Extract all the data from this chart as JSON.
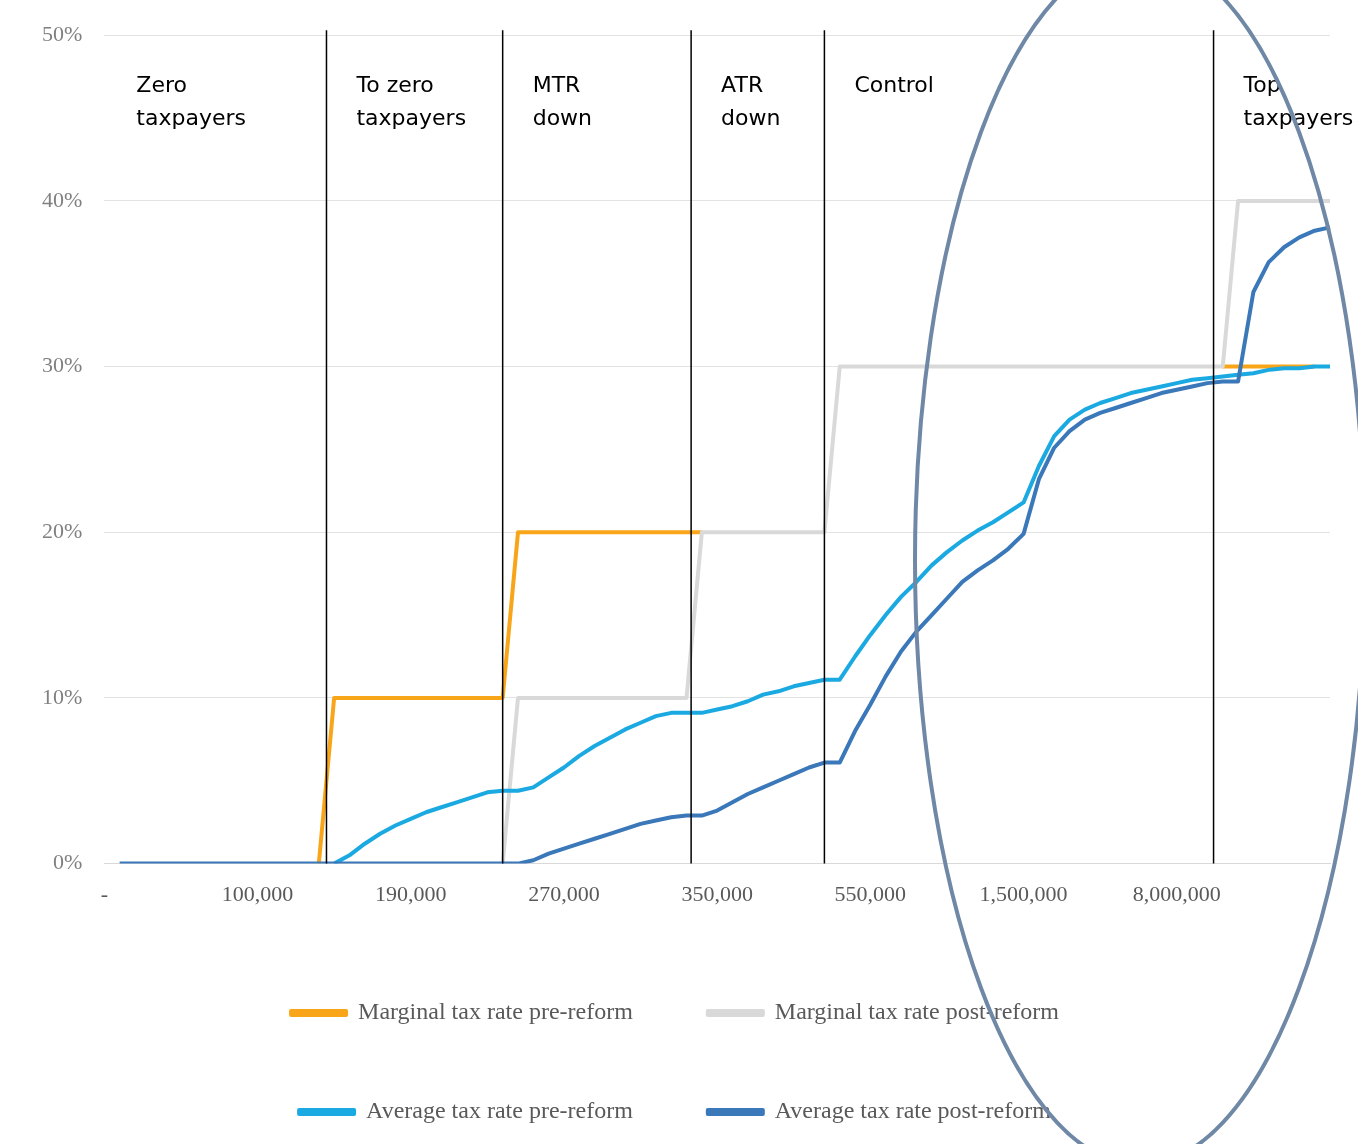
{
  "chart_data": {
    "type": "line",
    "categories": [
      "-",
      null,
      null,
      null,
      null,
      null,
      null,
      null,
      null,
      null,
      "100,000",
      null,
      null,
      null,
      null,
      null,
      null,
      null,
      null,
      null,
      "190,000",
      null,
      null,
      null,
      null,
      null,
      null,
      null,
      null,
      null,
      "270,000",
      null,
      null,
      null,
      null,
      null,
      null,
      null,
      null,
      null,
      "350,000",
      null,
      null,
      null,
      null,
      null,
      null,
      null,
      null,
      null,
      "550,000",
      null,
      null,
      null,
      null,
      null,
      null,
      null,
      null,
      null,
      "1,500,000",
      null,
      null,
      null,
      null,
      null,
      null,
      null,
      null,
      null,
      "8,000,000",
      null,
      null,
      null,
      null,
      null,
      null,
      null,
      null,
      null,
      null
    ],
    "series": [
      {
        "name": "Marginal tax rate pre-reform",
        "color": "#f9a51a",
        "values": [
          null,
          null,
          null,
          null,
          null,
          null,
          null,
          null,
          null,
          null,
          null,
          null,
          null,
          null,
          0,
          10,
          10,
          10,
          10,
          10,
          10,
          10,
          10,
          10,
          10,
          10,
          10,
          20,
          20,
          20,
          20,
          20,
          20,
          20,
          20,
          20,
          20,
          20,
          20,
          20,
          null,
          null,
          null,
          null,
          null,
          null,
          null,
          null,
          null,
          null,
          null,
          null,
          null,
          null,
          null,
          null,
          null,
          null,
          null,
          null,
          null,
          null,
          null,
          null,
          null,
          null,
          null,
          null,
          null,
          null,
          null,
          null,
          null,
          30,
          30,
          30,
          30,
          30,
          30,
          30,
          null
        ]
      },
      {
        "name": "Marginal tax rate post-reform",
        "color": "#d9d9d9",
        "values": [
          null,
          null,
          null,
          null,
          null,
          null,
          null,
          null,
          null,
          null,
          null,
          null,
          null,
          null,
          null,
          null,
          null,
          null,
          null,
          null,
          null,
          null,
          null,
          null,
          null,
          null,
          0,
          10,
          10,
          10,
          10,
          10,
          10,
          10,
          10,
          10,
          10,
          10,
          10,
          20,
          20,
          20,
          20,
          20,
          20,
          20,
          20,
          20,
          30,
          30,
          30,
          30,
          30,
          30,
          30,
          30,
          30,
          30,
          30,
          30,
          30,
          30,
          30,
          30,
          30,
          30,
          30,
          30,
          30,
          30,
          30,
          30,
          30,
          30,
          40,
          40,
          40,
          40,
          40,
          40,
          40
        ]
      },
      {
        "name": "Average tax rate pre-reform",
        "color": "#1ba9e1",
        "values": [
          null,
          null,
          null,
          null,
          null,
          null,
          null,
          null,
          null,
          null,
          null,
          null,
          null,
          null,
          null,
          0,
          0.5,
          1.2,
          1.8,
          2.3,
          2.7,
          3.1,
          3.4,
          3.7,
          4.0,
          4.3,
          4.4,
          4.4,
          4.6,
          5.2,
          5.8,
          6.5,
          7.1,
          7.6,
          8.1,
          8.5,
          8.9,
          9.1,
          9.1,
          9.1,
          9.3,
          9.5,
          9.8,
          10.2,
          10.4,
          10.7,
          10.9,
          11.1,
          11.1,
          12.5,
          13.8,
          15.0,
          16.1,
          17.0,
          18.0,
          18.8,
          19.5,
          20.1,
          20.6,
          21.2,
          21.8,
          24.0,
          25.8,
          26.8,
          27.4,
          27.8,
          28.1,
          28.4,
          28.6,
          28.8,
          29.0,
          29.2,
          29.3,
          29.4,
          29.5,
          29.6,
          29.8,
          29.9,
          29.9,
          30,
          30
        ]
      },
      {
        "name": "Average tax rate post-reform",
        "color": "#3a78b9",
        "values": [
          null,
          0,
          0,
          0,
          0,
          0,
          0,
          0,
          0,
          0,
          0,
          0,
          0,
          0,
          0,
          0,
          0,
          0,
          0,
          0,
          0,
          0,
          0,
          0,
          0,
          0,
          0,
          0,
          0.2,
          0.6,
          0.9,
          1.2,
          1.5,
          1.8,
          2.1,
          2.4,
          2.6,
          2.8,
          2.9,
          2.9,
          3.2,
          3.7,
          4.2,
          4.6,
          5.0,
          5.4,
          5.8,
          6.1,
          6.1,
          8.0,
          9.6,
          11.3,
          12.8,
          14.0,
          15.0,
          16.0,
          17.0,
          17.7,
          18.3,
          19.0,
          19.9,
          23.2,
          25.1,
          26.1,
          26.8,
          27.2,
          27.5,
          27.8,
          28.1,
          28.4,
          28.6,
          28.8,
          29.0,
          29.1,
          29.1,
          34.5,
          36.3,
          37.2,
          37.8,
          38.2,
          38.4
        ]
      }
    ],
    "ylim": [
      0,
      50
    ],
    "yticks": [
      {
        "value": 0,
        "label": "0%"
      },
      {
        "value": 10,
        "label": "10%"
      },
      {
        "value": 20,
        "label": "20%"
      },
      {
        "value": 30,
        "label": "30%"
      },
      {
        "value": 40,
        "label": "40%"
      },
      {
        "value": 50,
        "label": "50%"
      }
    ],
    "grid": "y",
    "legend": "bottom",
    "marker": "none",
    "line_style": "solid",
    "annotations": [
      "Zero taxpayers",
      "To zero taxpayers",
      "MTR down",
      "ATR down",
      "Control",
      "Top taxpayers"
    ]
  }
}
